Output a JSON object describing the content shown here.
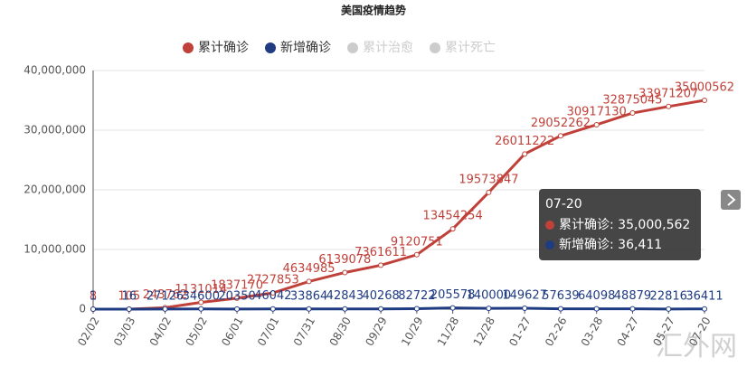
{
  "chart_data": {
    "type": "line",
    "title": "美国疫情趋势",
    "categories": [
      "02/02",
      "03/03",
      "04/02",
      "05/02",
      "06/01",
      "07/01",
      "07/31",
      "08/30",
      "09/29",
      "10/29",
      "11/28",
      "12/28",
      "01-27",
      "02-26",
      "03-28",
      "04-27",
      "05-27",
      "07-20"
    ],
    "series": [
      {
        "name": "累计确诊",
        "color": "#c0413a",
        "values": [
          8,
          105,
          243762,
          1131014,
          1837170,
          2727853,
          4634985,
          6139078,
          7361611,
          9120751,
          13454254,
          19573847,
          26011222,
          29052262,
          30917130,
          32875045,
          33971207,
          35000562
        ]
      },
      {
        "name": "新增确诊",
        "color": "#1f3b82",
        "values": [
          1,
          16,
          27126,
          34600,
          20350,
          46042,
          33864,
          42843,
          40268,
          82722,
          205578,
          140000,
          149627,
          57639,
          64098,
          48879,
          22816,
          36411
        ]
      }
    ],
    "legend_inactive": [
      "累计治愈",
      "累计死亡"
    ],
    "ylim": [
      0,
      40000000
    ],
    "yticks": [
      0,
      {
        "value": 10000000,
        "label": "10,000,000"
      },
      {
        "value": 20000000,
        "label": "20,000,000"
      },
      {
        "value": 30000000,
        "label": "30,000,000"
      },
      {
        "value": 40000000,
        "label": "40,000,000"
      }
    ],
    "grid": true,
    "tooltip": {
      "title": "07-20",
      "lines": [
        "累计确诊: 35,000,562",
        "新增确诊: 36,411"
      ]
    },
    "watermark": "汇外网"
  }
}
